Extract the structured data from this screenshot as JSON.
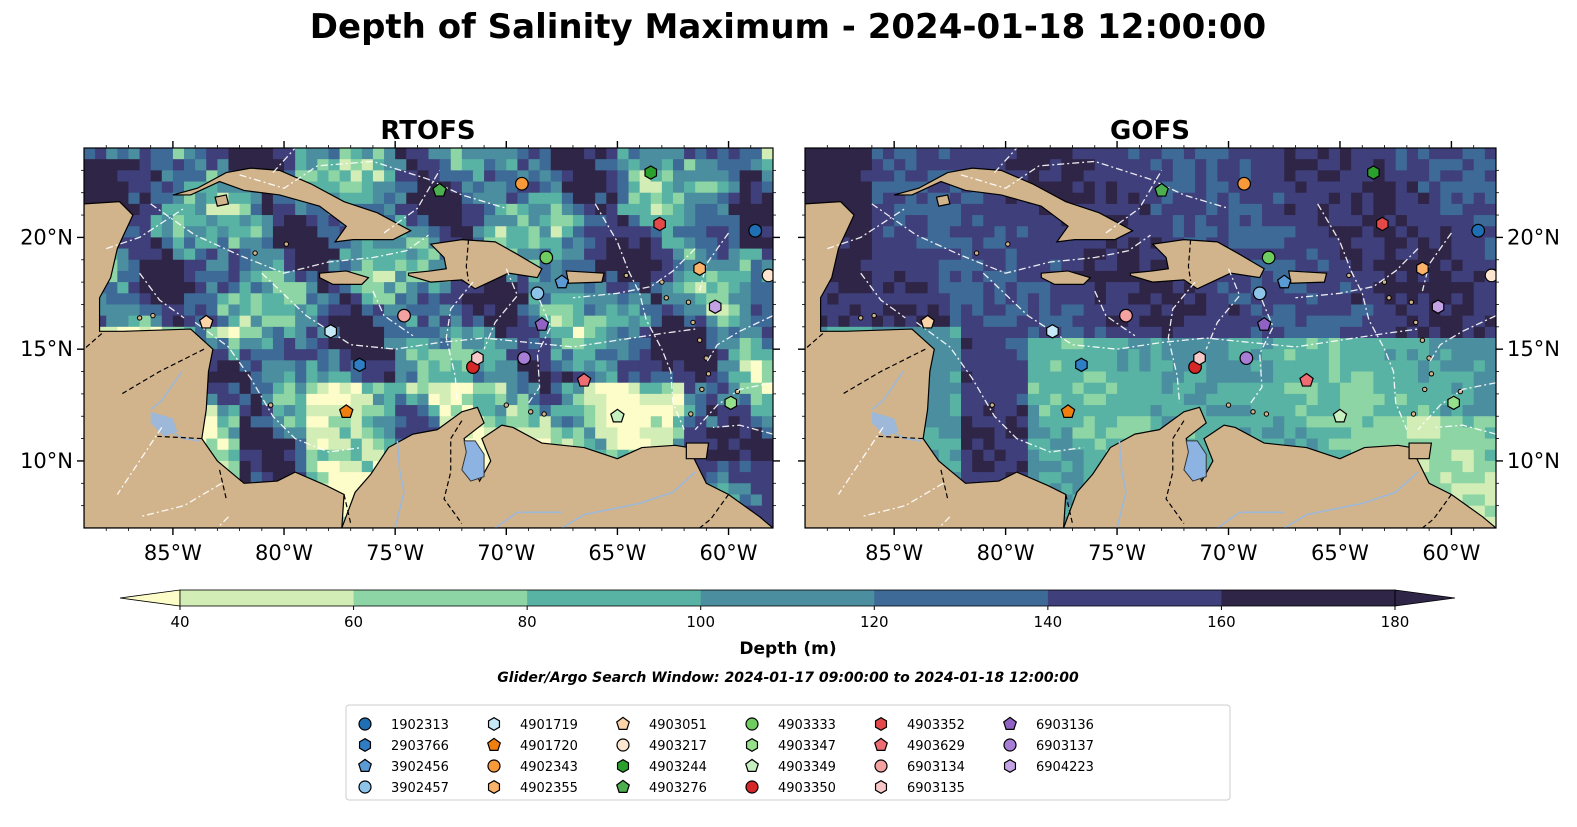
{
  "title": "Depth of Salinity Maximum - 2024-01-18 12:00:00",
  "chart_data": {
    "type": "heatmap",
    "panels": [
      {
        "title": "RTOFS",
        "lat_ticks_side": "left"
      },
      {
        "title": "GOFS",
        "lat_ticks_side": "right"
      }
    ],
    "lon_range": [
      -89,
      -58
    ],
    "lat_range": [
      7,
      24
    ],
    "lon_ticks": [
      "85°W",
      "80°W",
      "75°W",
      "70°W",
      "65°W",
      "60°W"
    ],
    "lon_tick_values": [
      -85,
      -80,
      -75,
      -70,
      -65,
      -60
    ],
    "lat_ticks": [
      "10°N",
      "15°N",
      "20°N"
    ],
    "lat_tick_values": [
      10,
      15,
      20
    ],
    "colorbar": {
      "label": "Depth (m)",
      "levels": [
        40,
        60,
        80,
        100,
        120,
        140,
        160,
        180
      ],
      "tick_labels": [
        "40",
        "60",
        "80",
        "100",
        "120",
        "140",
        "160",
        "180"
      ],
      "colors": [
        "#fdfdc9",
        "#d2edb5",
        "#8ed5a5",
        "#59b3a4",
        "#4a8e9f",
        "#3e6a98",
        "#3f3f7c",
        "#2f2546"
      ],
      "extend": "both"
    },
    "search_window": "Glider/Argo Search Window: 2024-01-17 09:00:00 to 2024-01-18 12:00:00",
    "floats": [
      {
        "id": "1902313",
        "marker": "circle",
        "color": "#1f6fb4",
        "lon": -58.8,
        "lat": 20.3
      },
      {
        "id": "2903766",
        "marker": "hexagon",
        "color": "#2f7dc4",
        "lon": -76.6,
        "lat": 14.3
      },
      {
        "id": "3902456",
        "marker": "pentagon",
        "color": "#5b9bd5",
        "lon": -67.5,
        "lat": 18.0
      },
      {
        "id": "3902457",
        "marker": "circle",
        "color": "#8ec3ea",
        "lon": -68.6,
        "lat": 17.5
      },
      {
        "id": "4901719",
        "marker": "hexagon",
        "color": "#c6e8f7",
        "lon": -77.9,
        "lat": 15.8
      },
      {
        "id": "4901720",
        "marker": "pentagon",
        "color": "#f07f10",
        "lon": -77.2,
        "lat": 12.2
      },
      {
        "id": "4902343",
        "marker": "circle",
        "color": "#f89a3a",
        "lon": -69.3,
        "lat": 22.4
      },
      {
        "id": "4902355",
        "marker": "hexagon",
        "color": "#fbb36a",
        "lon": -61.3,
        "lat": 18.6
      },
      {
        "id": "4903051",
        "marker": "pentagon",
        "color": "#fdd4a8",
        "lon": -83.5,
        "lat": 16.2
      },
      {
        "id": "4903217",
        "marker": "circle",
        "color": "#fde5d0",
        "lon": -58.2,
        "lat": 18.3
      },
      {
        "id": "4903244",
        "marker": "hexagon",
        "color": "#2ca02c",
        "lon": -63.5,
        "lat": 22.9
      },
      {
        "id": "4903276",
        "marker": "pentagon",
        "color": "#4caf50",
        "lon": -73.0,
        "lat": 22.1
      },
      {
        "id": "4903333",
        "marker": "circle",
        "color": "#6fcc5f",
        "lon": -68.2,
        "lat": 19.1
      },
      {
        "id": "4903347",
        "marker": "hexagon",
        "color": "#96e08c",
        "lon": -59.9,
        "lat": 12.6
      },
      {
        "id": "4903349",
        "marker": "pentagon",
        "color": "#c6f0c0",
        "lon": -65.0,
        "lat": 12.0
      },
      {
        "id": "4903350",
        "marker": "circle",
        "color": "#d62728",
        "lon": -71.5,
        "lat": 14.2
      },
      {
        "id": "4903352",
        "marker": "hexagon",
        "color": "#e44848",
        "lon": -63.1,
        "lat": 20.6
      },
      {
        "id": "4903629",
        "marker": "pentagon",
        "color": "#ee6d73",
        "lon": -66.5,
        "lat": 13.6
      },
      {
        "id": "6903134",
        "marker": "circle",
        "color": "#f4a1a1",
        "lon": -74.6,
        "lat": 16.5
      },
      {
        "id": "6903135",
        "marker": "hexagon",
        "color": "#f8c8c8",
        "lon": -71.3,
        "lat": 14.6
      },
      {
        "id": "6903136",
        "marker": "pentagon",
        "color": "#8f62c4",
        "lon": -68.4,
        "lat": 16.1
      },
      {
        "id": "6903137",
        "marker": "circle",
        "color": "#a77dd6",
        "lon": -69.2,
        "lat": 14.6
      },
      {
        "id": "6904223",
        "marker": "hexagon",
        "color": "#c4a2e6",
        "lon": -60.6,
        "lat": 16.9
      }
    ]
  },
  "colors": {
    "land": "#d2b48c",
    "lake": "#8db3e2",
    "river": "#9db8d8",
    "coast": "#000000"
  }
}
